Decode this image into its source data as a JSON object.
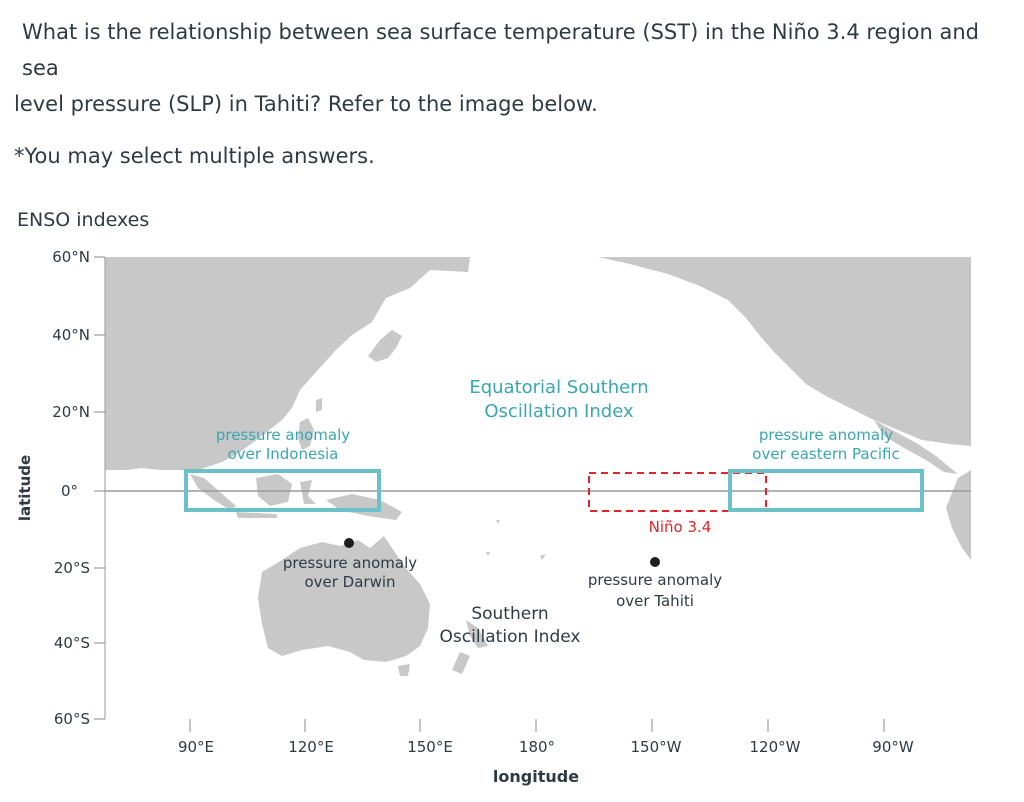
{
  "question": {
    "line1": "What is the relationship between sea surface temperature (SST) in the Niño 3.4 region and sea",
    "line2": "level pressure (SLP) in Tahiti? Refer to the image below.",
    "note": "*You may select multiple answers."
  },
  "map": {
    "title": "ENSO indexes",
    "y_axis_label": "latitude",
    "x_axis_label": "longitude",
    "lat_ticks": [
      "60°N",
      "40°N",
      "20°N",
      "0°",
      "20°S",
      "40°S",
      "60°S"
    ],
    "lon_ticks": [
      "90°E",
      "120°E",
      "150°E",
      "180°",
      "150°W",
      "120°W",
      "90°W"
    ],
    "labels": {
      "indonesia_line1": "pressure anomaly",
      "indonesia_line2": "over Indonesia",
      "eastern_pacific_line1": "pressure anomaly",
      "eastern_pacific_line2": "over eastern Pacific",
      "eso_line1": "Equatorial Southern",
      "eso_line2": "Oscillation Index",
      "nino34": "Niño 3.4",
      "darwin_line1": "pressure anomaly",
      "darwin_line2": "over Darwin",
      "tahiti_line1": "pressure anomaly",
      "tahiti_line2": "over Tahiti",
      "soi_line1": "Southern",
      "soi_line2": "Oscillation Index"
    },
    "colors": {
      "ocean": "#ffffff",
      "land": "#c8c8c8",
      "box_teal": "#6cc1c8",
      "label_teal": "#3aa6b2",
      "nino_red": "#e0262b",
      "text_dark": "#2f3a45"
    }
  }
}
